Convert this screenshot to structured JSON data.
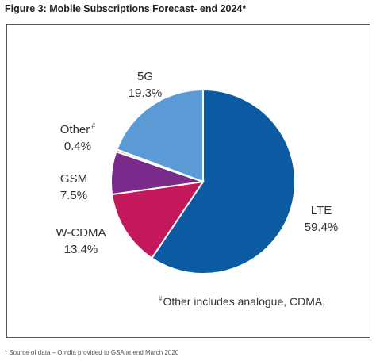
{
  "figure": {
    "title": "Figure 3: Mobile Subscriptions Forecast- end 2024*",
    "footnote_marker": "#",
    "footnote_text": "Other includes analogue, CDMA,",
    "source": "* Source of data – Omdia provided to GSA at end March 2020"
  },
  "chart_data": {
    "type": "pie",
    "title": "",
    "slices": [
      {
        "label": "LTE",
        "value": 59.4,
        "display": "59.4%",
        "color": "#0b5aa2"
      },
      {
        "label": "W-CDMA",
        "value": 13.4,
        "display": "13.4%",
        "color": "#c4185c"
      },
      {
        "label": "GSM",
        "value": 7.5,
        "display": "7.5%",
        "color": "#7a2a8a"
      },
      {
        "label": "Other",
        "label_marker": "#",
        "value": 0.4,
        "display": "0.4%",
        "color": "#d9b26a"
      },
      {
        "label": "5G",
        "value": 19.3,
        "display": "19.3%",
        "color": "#5b9bd5"
      }
    ],
    "start_angle_deg": 0,
    "direction": "clockwise",
    "legend": "none"
  }
}
